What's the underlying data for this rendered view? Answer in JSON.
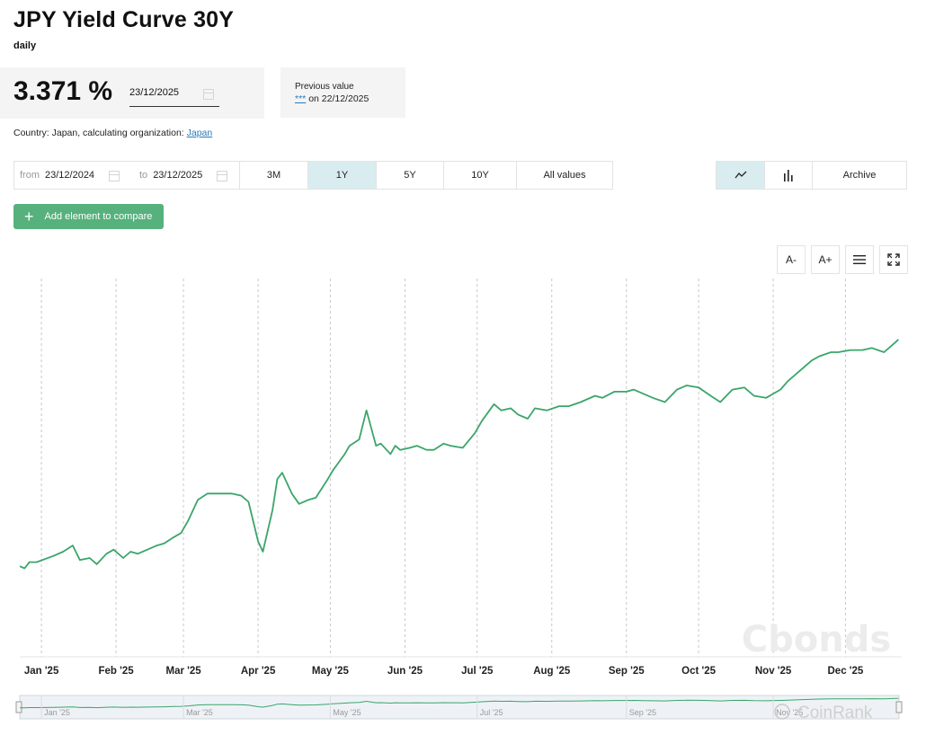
{
  "header": {
    "title": "JPY Yield Curve 30Y",
    "frequency": "daily"
  },
  "current": {
    "value": "3.371 %",
    "date": "23/12/2025"
  },
  "previous": {
    "label": "Previous value",
    "stars": "***",
    "on_text": "on 22/12/2025"
  },
  "country_line": {
    "text": "Country: Japan, calculating organization: ",
    "link": "Japan"
  },
  "range": {
    "from_label": "from",
    "from_value": "23/12/2024",
    "to_label": "to",
    "to_value": "23/12/2025",
    "periods": [
      "3M",
      "1Y",
      "5Y",
      "10Y",
      "All values"
    ],
    "active_period": "1Y"
  },
  "view": {
    "line_icon": "line-chart-icon",
    "bar_icon": "bar-chart-icon",
    "archive_label": "Archive"
  },
  "add_button": {
    "label": "Add element to compare",
    "icon": "plus-icon"
  },
  "tools": {
    "font_decrease": "A-",
    "font_increase": "A+",
    "menu_icon": "hamburger-menu-icon",
    "fullscreen_icon": "fullscreen-icon"
  },
  "colors": {
    "line": "#3aa56a",
    "accent_bg": "#d9ecef",
    "button": "#57b17c"
  },
  "watermarks": {
    "cbonds": "Cbonds",
    "coinrank": "CoinRank"
  },
  "chart_data": {
    "type": "line",
    "title": "JPY Yield Curve 30Y",
    "ylabel": "%",
    "x_tick_labels": [
      "Jan '25",
      "Feb '25",
      "Mar '25",
      "Apr '25",
      "May '25",
      "Jun '25",
      "Jul '25",
      "Aug '25",
      "Sep '25",
      "Oct '25",
      "Nov '25",
      "Dec '25"
    ],
    "navigator_labels": [
      "Jan '25",
      "Mar '25",
      "May '25",
      "Jul '25",
      "Sep '25",
      "Nov '25"
    ],
    "grid": "vertical dashed",
    "ylim": [
      2.0,
      3.5
    ],
    "series": [
      {
        "name": "JPY Yield Curve 30Y",
        "x": [
          "2024-12-23",
          "2024-12-25",
          "2024-12-27",
          "2024-12-30",
          "2025-01-06",
          "2025-01-10",
          "2025-01-14",
          "2025-01-17",
          "2025-01-21",
          "2025-01-24",
          "2025-01-28",
          "2025-01-31",
          "2025-02-04",
          "2025-02-07",
          "2025-02-10",
          "2025-02-14",
          "2025-02-18",
          "2025-02-21",
          "2025-02-25",
          "2025-02-28",
          "2025-03-03",
          "2025-03-07",
          "2025-03-11",
          "2025-03-14",
          "2025-03-18",
          "2025-03-21",
          "2025-03-25",
          "2025-03-28",
          "2025-04-01",
          "2025-04-03",
          "2025-04-07",
          "2025-04-09",
          "2025-04-11",
          "2025-04-15",
          "2025-04-18",
          "2025-04-22",
          "2025-04-25",
          "2025-04-30",
          "2025-05-02",
          "2025-05-07",
          "2025-05-09",
          "2025-05-13",
          "2025-05-16",
          "2025-05-20",
          "2025-05-22",
          "2025-05-26",
          "2025-05-28",
          "2025-05-30",
          "2025-06-03",
          "2025-06-06",
          "2025-06-10",
          "2025-06-13",
          "2025-06-17",
          "2025-06-20",
          "2025-06-25",
          "2025-06-30",
          "2025-07-03",
          "2025-07-08",
          "2025-07-11",
          "2025-07-15",
          "2025-07-18",
          "2025-07-22",
          "2025-07-25",
          "2025-07-30",
          "2025-08-04",
          "2025-08-08",
          "2025-08-13",
          "2025-08-19",
          "2025-08-22",
          "2025-08-27",
          "2025-09-01",
          "2025-09-04",
          "2025-09-08",
          "2025-09-12",
          "2025-09-17",
          "2025-09-22",
          "2025-09-26",
          "2025-10-01",
          "2025-10-06",
          "2025-10-10",
          "2025-10-15",
          "2025-10-20",
          "2025-10-24",
          "2025-10-29",
          "2025-11-04",
          "2025-11-07",
          "2025-11-12",
          "2025-11-17",
          "2025-11-20",
          "2025-11-25",
          "2025-11-28",
          "2025-12-03",
          "2025-12-08",
          "2025-12-12",
          "2025-12-17",
          "2025-12-22",
          "2025-12-23"
        ],
        "values": [
          2.28,
          2.27,
          2.3,
          2.3,
          2.33,
          2.35,
          2.38,
          2.31,
          2.32,
          2.29,
          2.34,
          2.36,
          2.32,
          2.35,
          2.34,
          2.36,
          2.38,
          2.39,
          2.42,
          2.44,
          2.5,
          2.6,
          2.63,
          2.63,
          2.63,
          2.63,
          2.62,
          2.59,
          2.4,
          2.35,
          2.55,
          2.7,
          2.73,
          2.63,
          2.58,
          2.6,
          2.61,
          2.7,
          2.74,
          2.82,
          2.86,
          2.89,
          3.03,
          2.86,
          2.87,
          2.82,
          2.86,
          2.84,
          2.85,
          2.86,
          2.84,
          2.84,
          2.87,
          2.86,
          2.85,
          2.92,
          2.98,
          3.06,
          3.03,
          3.04,
          3.01,
          2.99,
          3.04,
          3.03,
          3.05,
          3.05,
          3.07,
          3.1,
          3.09,
          3.12,
          3.12,
          3.13,
          3.11,
          3.09,
          3.07,
          3.13,
          3.15,
          3.14,
          3.1,
          3.07,
          3.13,
          3.14,
          3.1,
          3.09,
          3.13,
          3.17,
          3.22,
          3.27,
          3.29,
          3.31,
          3.31,
          3.32,
          3.32,
          3.33,
          3.31,
          3.36,
          3.371
        ]
      }
    ]
  }
}
